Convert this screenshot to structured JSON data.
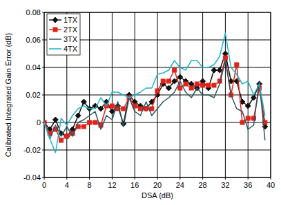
{
  "chart_data": {
    "type": "line",
    "x_label": "DSA (dB)",
    "y_label": "Calibrated Integrated Gain Error (dB)",
    "x": [
      0,
      1,
      2,
      3,
      4,
      5,
      6,
      7,
      8,
      9,
      10,
      11,
      12,
      13,
      14,
      15,
      16,
      17,
      18,
      19,
      20,
      21,
      22,
      23,
      24,
      25,
      26,
      27,
      28,
      29,
      30,
      31,
      32,
      33,
      34,
      35,
      36,
      37,
      38,
      39
    ],
    "series": [
      {
        "name": "1TX",
        "color": "#111111",
        "marker": "diamond",
        "values": [
          0,
          -0.005,
          0.002,
          -0.008,
          -0.01,
          -0.005,
          0.005,
          0.015,
          0.01,
          0.012,
          0.01,
          0.015,
          0.008,
          0.012,
          -0.001,
          0.02,
          0.015,
          0.012,
          0.01,
          0.015,
          0.02,
          0.028,
          0.025,
          0.03,
          0.033,
          0.03,
          0.028,
          0.025,
          0.03,
          0.025,
          0.038,
          0.038,
          0.05,
          0.03,
          0.03,
          0.015,
          0.012,
          0.018,
          0.028,
          -0.003
        ]
      },
      {
        "name": "2TX",
        "color": "#e2231a",
        "marker": "square",
        "values": [
          0,
          -0.008,
          -0.005,
          -0.013,
          -0.01,
          -0.008,
          -0.003,
          -0.003,
          0,
          0,
          -0.002,
          0.012,
          0.012,
          0.01,
          0.01,
          0.018,
          0.012,
          0.01,
          0.01,
          0.01,
          0.023,
          0.03,
          0.03,
          0.038,
          0.025,
          0.028,
          0.025,
          0.028,
          0.027,
          0.027,
          0.027,
          0.03,
          0.047,
          0.02,
          0.042,
          0,
          0.003,
          0.003,
          0.025,
          0
        ]
      },
      {
        "name": "3TX",
        "color": "#2a5560",
        "marker": "none",
        "values": [
          0,
          -0.012,
          -0.002,
          -0.01,
          -0.003,
          -0.01,
          0,
          0.002,
          0.005,
          0.008,
          -0.005,
          0.005,
          0.002,
          0.015,
          -0.003,
          0.018,
          0.008,
          0.005,
          0.015,
          0.005,
          0.01,
          0.015,
          0.018,
          0.022,
          0.03,
          0.022,
          0.018,
          0.025,
          0.02,
          0.02,
          0.018,
          0.028,
          0.045,
          0.02,
          0.01,
          0.008,
          -0.005,
          -0.002,
          0.03,
          -0.013
        ]
      },
      {
        "name": "4TX",
        "color": "#1fb3c8",
        "marker": "none",
        "values": [
          0,
          -0.012,
          -0.022,
          0.003,
          -0.002,
          0.005,
          0.01,
          0.012,
          0.01,
          0.01,
          0.018,
          0.012,
          0.022,
          0.022,
          0.02,
          0.018,
          0.02,
          0.022,
          0.025,
          0.025,
          0.035,
          0.036,
          0.038,
          0.045,
          0.04,
          0.038,
          0.045,
          0.045,
          0.04,
          0.04,
          0.042,
          0.048,
          0.065,
          0.04,
          0.035,
          0.028,
          0.03,
          0.02,
          0.028,
          0.005
        ]
      }
    ],
    "xlim": [
      0,
      40
    ],
    "xticks": [
      0,
      4,
      8,
      12,
      16,
      20,
      24,
      28,
      32,
      36,
      40
    ],
    "ylim": [
      -0.04,
      0.08
    ],
    "yticks": [
      -0.04,
      -0.02,
      0,
      0.02,
      0.04,
      0.06,
      0.08
    ],
    "grid": true,
    "legend": "upper left"
  }
}
